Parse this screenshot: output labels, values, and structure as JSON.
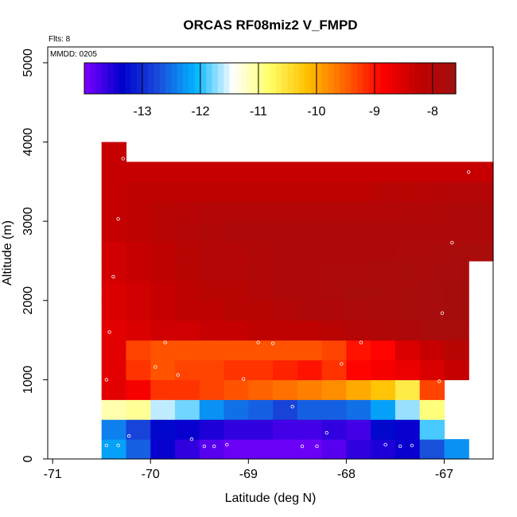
{
  "chart_data": {
    "type": "heatmap",
    "title": "ORCAS RF08miz2 V_FMPD",
    "annotations": {
      "flts": "Flts: 8",
      "mmdd": "MMDD: 0205"
    },
    "xlabel": "Latitude (deg N)",
    "ylabel": "Altitude (m)",
    "xlim": [
      -71.05,
      -66.5
    ],
    "ylim": [
      0,
      5200
    ],
    "x_ticks": [
      -71,
      -70,
      -69,
      -68,
      -67
    ],
    "x_tick_labels": [
      "-71",
      "-70",
      "-69",
      "-68",
      "-67"
    ],
    "y_ticks": [
      0,
      1000,
      2000,
      3000,
      4000,
      5000
    ],
    "y_tick_labels": [
      "0",
      "1000",
      "2000",
      "3000",
      "4000",
      "5000"
    ],
    "colorbar": {
      "range": [
        -14,
        -7.6
      ],
      "ticks": [
        -13,
        -12,
        -11,
        -10,
        -9,
        -8
      ],
      "tick_labels": [
        "-13",
        "-12",
        "-11",
        "-10",
        "-9",
        "-8"
      ],
      "palette": [
        "#7f00ff",
        "#0000cc",
        "#1a4ddb",
        "#00b4ff",
        "#ffffff",
        "#ffff66",
        "#ffc000",
        "#ff6600",
        "#ff0000",
        "#c00000",
        "#a01010"
      ]
    },
    "grid": false,
    "cells": [
      {
        "alt": 125,
        "row": [
          -12.2,
          -12.6,
          -13.4,
          -13.6,
          -13.8,
          -13.9,
          -13.9,
          -13.9,
          -13.9,
          -13.8,
          -13.6,
          -13.5,
          -13.4,
          -12.7,
          -12.3
        ]
      },
      {
        "alt": 375,
        "row": [
          -12.4,
          -12.8,
          -13.3,
          -13.4,
          -13.5,
          -13.6,
          -13.6,
          -13.7,
          -13.7,
          -13.6,
          -13.7,
          -13.3,
          -13.4,
          -11.9
        ]
      },
      {
        "alt": 625,
        "row": [
          -11.1,
          -11.0,
          -11.6,
          -11.8,
          -12.3,
          -12.5,
          -12.6,
          -12.8,
          -12.6,
          -12.6,
          -12.5,
          -12.2,
          -11.7,
          -10.9
        ]
      },
      {
        "alt": 875,
        "row": [
          -8.6,
          -8.8,
          -9.2,
          -9.2,
          -9.3,
          -9.4,
          -9.5,
          -9.6,
          -9.7,
          -9.8,
          -10.0,
          -10.2,
          -10.6,
          -9.3
        ]
      },
      {
        "alt": 1125,
        "row": [
          -8.6,
          -9.2,
          -9.4,
          -9.3,
          -9.3,
          -9.2,
          -9.2,
          -9.1,
          -9.0,
          -9.2,
          -8.9,
          -8.8,
          -8.7,
          -8.5,
          -8.3
        ]
      },
      {
        "alt": 1375,
        "row": [
          -8.6,
          -9.3,
          -9.4,
          -9.4,
          -9.4,
          -9.4,
          -9.4,
          -9.4,
          -9.4,
          -9.3,
          -9.0,
          -8.9,
          -8.5,
          -8.3,
          -8.1
        ]
      },
      {
        "alt": 1625,
        "row": [
          -8.6,
          -8.5,
          -8.4,
          -8.4,
          -8.3,
          -8.3,
          -8.2,
          -8.2,
          -8.2,
          -8.1,
          -8.0,
          -7.95,
          -7.9,
          -7.8,
          -7.8
        ]
      },
      {
        "alt": 1875,
        "row": [
          -8.5,
          -8.4,
          -8.3,
          -8.2,
          -8.2,
          -8.1,
          -8.1,
          -8.0,
          -7.9,
          -7.9,
          -7.85,
          -7.8,
          -7.8,
          -7.75,
          -7.7
        ]
      },
      {
        "alt": 2125,
        "row": [
          -8.5,
          -8.4,
          -8.3,
          -8.2,
          -8.1,
          -8.1,
          -8.0,
          -7.9,
          -7.9,
          -7.85,
          -7.8,
          -7.8,
          -7.8,
          -7.75,
          -7.7
        ]
      },
      {
        "alt": 2375,
        "row": [
          -8.4,
          -8.3,
          -8.2,
          -8.1,
          -8.0,
          -8.0,
          -7.95,
          -7.9,
          -7.9,
          -7.85,
          -7.85,
          -7.8,
          -7.8,
          -7.8,
          -7.75
        ]
      },
      {
        "alt": 2625,
        "row": [
          -8.4,
          -8.3,
          -8.2,
          -8.1,
          -8.0,
          -8.0,
          -7.95,
          -7.9,
          -7.9,
          -7.9,
          -7.9,
          -7.9,
          -7.85,
          -7.85,
          -7.8,
          -7.8
        ]
      },
      {
        "alt": 2875,
        "row": [
          -8.3,
          -8.2,
          -8.1,
          -8.0,
          -7.95,
          -7.9,
          -7.9,
          -7.9,
          -7.9,
          -7.9,
          -7.9,
          -7.9,
          -7.9,
          -7.9,
          -7.9,
          -7.9
        ]
      },
      {
        "alt": 3125,
        "row": [
          -8.3,
          -8.2,
          -8.1,
          -8.05,
          -8.0,
          -8.0,
          -8.0,
          -8.0,
          -8.0,
          -8.0,
          -8.0,
          -8.0,
          -7.95,
          -7.95,
          -7.9,
          -7.9
        ]
      },
      {
        "alt": 3375,
        "row": [
          -8.3,
          -8.2,
          -8.2,
          -8.2,
          -8.2,
          -8.2,
          -8.2,
          -8.2,
          -8.2,
          -8.2,
          -8.2,
          -8.1,
          -8.1,
          -8.05,
          -8.0,
          -8.0
        ]
      },
      {
        "alt": 3625,
        "row": [
          -8.3,
          -8.3,
          -8.3,
          -8.3,
          -8.3,
          -8.3,
          -8.3,
          -8.3,
          -8.3,
          -8.3,
          -8.3,
          -8.3,
          -8.3,
          -8.3,
          -8.3,
          -8.3
        ]
      },
      {
        "alt": 3875,
        "row": [
          -8.3
        ]
      }
    ],
    "cell_lat_start": -70.5,
    "cell_lat_width": 0.25,
    "cell_alt_height": 250,
    "obs_points": [
      {
        "lat": -70.45,
        "alt": 170
      },
      {
        "lat": -70.33,
        "alt": 170
      },
      {
        "lat": -70.22,
        "alt": 290
      },
      {
        "lat": -69.58,
        "alt": 250
      },
      {
        "lat": -69.45,
        "alt": 160
      },
      {
        "lat": -69.35,
        "alt": 160
      },
      {
        "lat": -69.22,
        "alt": 180
      },
      {
        "lat": -68.45,
        "alt": 160
      },
      {
        "lat": -68.3,
        "alt": 160
      },
      {
        "lat": -68.2,
        "alt": 330
      },
      {
        "lat": -67.6,
        "alt": 180
      },
      {
        "lat": -67.45,
        "alt": 160
      },
      {
        "lat": -67.33,
        "alt": 170
      },
      {
        "lat": -70.52,
        "alt": 440
      },
      {
        "lat": -68.55,
        "alt": 660
      },
      {
        "lat": -70.45,
        "alt": 1000
      },
      {
        "lat": -69.95,
        "alt": 1160
      },
      {
        "lat": -69.72,
        "alt": 1060
      },
      {
        "lat": -69.05,
        "alt": 1010
      },
      {
        "lat": -68.05,
        "alt": 1200
      },
      {
        "lat": -67.85,
        "alt": 1470
      },
      {
        "lat": -68.9,
        "alt": 1470
      },
      {
        "lat": -68.75,
        "alt": 1460
      },
      {
        "lat": -69.85,
        "alt": 1470
      },
      {
        "lat": -70.42,
        "alt": 1600
      },
      {
        "lat": -70.38,
        "alt": 2300
      },
      {
        "lat": -70.33,
        "alt": 3030
      },
      {
        "lat": -70.28,
        "alt": 3790
      },
      {
        "lat": -67.05,
        "alt": 980
      },
      {
        "lat": -66.92,
        "alt": 2730
      },
      {
        "lat": -66.75,
        "alt": 3620
      },
      {
        "lat": -67.02,
        "alt": 1840
      }
    ]
  }
}
